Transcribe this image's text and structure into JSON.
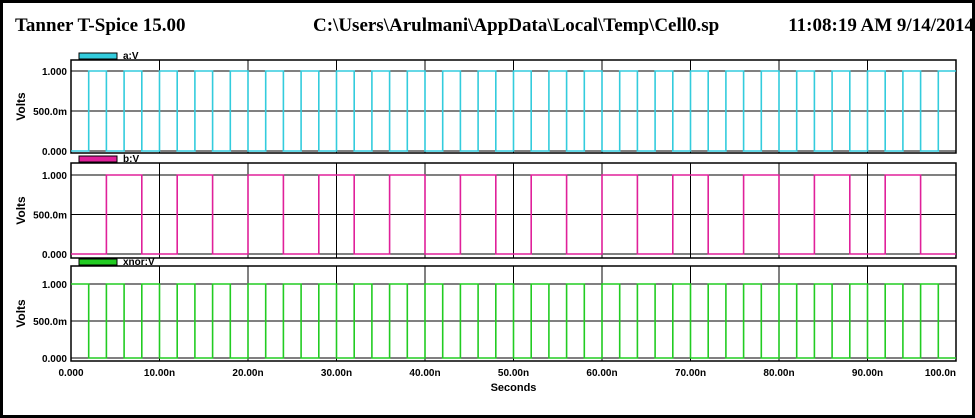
{
  "header": {
    "app_title": "Tanner T-Spice 15.00",
    "file_path": "C:\\Users\\Arulmani\\AppData\\Local\\Temp\\Cell0.sp",
    "timestamp": "11:08:19 AM 9/14/2014"
  },
  "chart_data": {
    "type": "line",
    "xlabel": "Seconds",
    "xlim": [
      0,
      100
    ],
    "xticks": [
      "0.000",
      "10.00n",
      "20.00n",
      "30.00n",
      "40.00n",
      "50.00n",
      "60.00n",
      "70.00n",
      "80.00n",
      "90.00n",
      "100.0n"
    ],
    "ylim": [
      0,
      1
    ],
    "yticks": [
      "0.000",
      "500.0m",
      "1.000"
    ],
    "ylabel": "Volts",
    "grid": true,
    "colors": {
      "a": "#33ccdd",
      "b": "#e0209a",
      "xnor": "#22cc22",
      "grid": "#000000"
    },
    "panels": [
      {
        "name": "a:V",
        "color": "#33ccdd",
        "series": [
          {
            "name": "a:V",
            "x": [
              0,
              2,
              2,
              4,
              4,
              6,
              6,
              8,
              8,
              10,
              10,
              12,
              12,
              14,
              14,
              16,
              16,
              18,
              18,
              20,
              20,
              22,
              22,
              24,
              24,
              26,
              26,
              28,
              28,
              30,
              30,
              32,
              32,
              34,
              34,
              36,
              36,
              38,
              38,
              40,
              40,
              42,
              42,
              44,
              44,
              46,
              46,
              48,
              48,
              50,
              50,
              52,
              52,
              54,
              54,
              56,
              56,
              58,
              58,
              60,
              60,
              62,
              62,
              64,
              64,
              66,
              66,
              68,
              68,
              70,
              70,
              72,
              72,
              74,
              74,
              76,
              76,
              78,
              78,
              80,
              80,
              82,
              82,
              84,
              84,
              86,
              86,
              88,
              88,
              90,
              90,
              92,
              92,
              94,
              94,
              96,
              96,
              98,
              98,
              100
            ],
            "y": [
              0,
              0,
              1,
              1,
              0,
              0,
              1,
              1,
              0,
              0,
              1,
              1,
              0,
              0,
              1,
              1,
              0,
              0,
              1,
              1,
              0,
              0,
              1,
              1,
              0,
              0,
              1,
              1,
              0,
              0,
              1,
              1,
              0,
              0,
              1,
              1,
              0,
              0,
              1,
              1,
              0,
              0,
              1,
              1,
              0,
              0,
              1,
              1,
              0,
              0,
              1,
              1,
              0,
              0,
              1,
              1,
              0,
              0,
              1,
              1,
              0,
              0,
              1,
              1,
              0,
              0,
              1,
              1,
              0,
              0,
              1,
              1,
              0,
              0,
              1,
              1,
              0,
              0,
              1,
              1,
              0,
              0,
              1,
              1,
              0,
              0,
              1,
              1,
              0,
              0,
              1,
              1,
              0,
              0,
              1,
              1,
              0,
              0,
              1,
              1
            ]
          }
        ]
      },
      {
        "name": "b:V",
        "color": "#e0209a",
        "series": [
          {
            "name": "b:V",
            "x": [
              0,
              4,
              4,
              8,
              8,
              12,
              12,
              16,
              16,
              20,
              20,
              24,
              24,
              28,
              28,
              32,
              32,
              36,
              36,
              40,
              40,
              44,
              44,
              48,
              48,
              52,
              52,
              56,
              56,
              60,
              60,
              64,
              64,
              68,
              68,
              72,
              72,
              76,
              76,
              80,
              80,
              84,
              84,
              88,
              88,
              92,
              92,
              96,
              96,
              100
            ],
            "y": [
              0,
              0,
              1,
              1,
              0,
              0,
              1,
              1,
              0,
              0,
              1,
              1,
              0,
              0,
              1,
              1,
              0,
              0,
              1,
              1,
              0,
              0,
              1,
              1,
              0,
              0,
              1,
              1,
              0,
              0,
              1,
              1,
              0,
              0,
              1,
              1,
              0,
              0,
              1,
              1,
              0,
              0,
              1,
              1,
              0,
              0,
              1,
              1,
              0,
              0
            ]
          }
        ]
      },
      {
        "name": "xnor:V",
        "color": "#22cc22",
        "series": [
          {
            "name": "xnor:V",
            "x": [
              0,
              2,
              2,
              4,
              4,
              6,
              6,
              8,
              8,
              10,
              10,
              12,
              12,
              14,
              14,
              16,
              16,
              18,
              18,
              20,
              20,
              22,
              22,
              24,
              24,
              26,
              26,
              28,
              28,
              30,
              30,
              32,
              32,
              34,
              34,
              36,
              36,
              38,
              38,
              40,
              40,
              42,
              42,
              44,
              44,
              46,
              46,
              48,
              48,
              50,
              50,
              52,
              52,
              54,
              54,
              56,
              56,
              58,
              58,
              60,
              60,
              62,
              62,
              64,
              64,
              66,
              66,
              68,
              68,
              70,
              70,
              72,
              72,
              74,
              74,
              76,
              76,
              78,
              78,
              80,
              80,
              82,
              82,
              84,
              84,
              86,
              86,
              88,
              88,
              90,
              90,
              92,
              92,
              94,
              94,
              96,
              96,
              98,
              98,
              100
            ],
            "y": [
              1,
              1,
              0,
              0,
              1,
              1,
              0,
              0,
              1,
              1,
              0,
              0,
              1,
              1,
              0,
              0,
              1,
              1,
              0,
              0,
              1,
              1,
              0,
              0,
              1,
              1,
              0,
              0,
              1,
              1,
              0,
              0,
              1,
              1,
              0,
              0,
              1,
              1,
              0,
              0,
              1,
              1,
              0,
              0,
              1,
              1,
              0,
              0,
              1,
              1,
              0,
              0,
              1,
              1,
              0,
              0,
              1,
              1,
              0,
              0,
              1,
              1,
              0,
              0,
              1,
              1,
              0,
              0,
              1,
              1,
              0,
              0,
              1,
              1,
              0,
              0,
              1,
              1,
              0,
              0,
              1,
              1,
              0,
              0,
              1,
              1,
              0,
              0,
              1,
              1,
              0,
              0,
              1,
              1,
              0,
              0,
              1,
              1,
              0,
              0
            ]
          }
        ]
      }
    ]
  }
}
